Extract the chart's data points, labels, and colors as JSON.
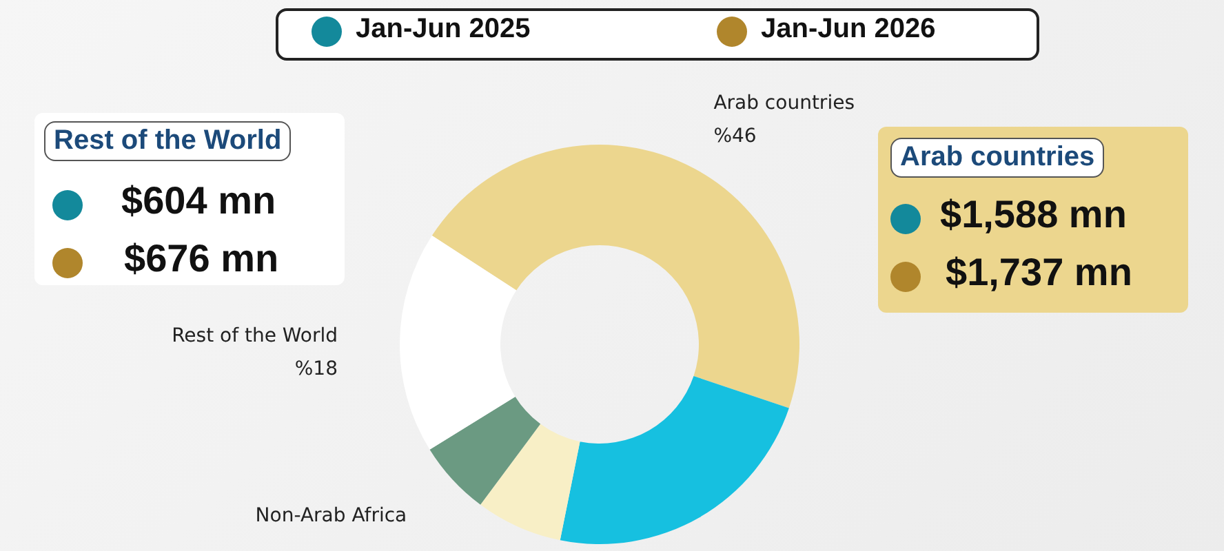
{
  "chart_data": {
    "type": "donut",
    "categories": [
      "Arab countries",
      null,
      null,
      "Non-Arab Africa",
      "Rest of the World"
    ],
    "values": [
      46,
      23,
      7,
      6,
      18
    ],
    "colors": [
      "#ecd68e",
      "#16c0e0",
      "#f8efc6",
      "#6b9a82",
      "#ffffff"
    ],
    "value_labels": [
      "%46",
      null,
      null,
      null,
      "%18"
    ],
    "annotations": [
      "Jan-Jun 2025",
      "Jan-Jun 2026",
      "Rest of the World",
      "$604 mn",
      "$676 mn",
      "Arab countries",
      "$1,588 mn",
      "$1,737 mn"
    ]
  }
}
